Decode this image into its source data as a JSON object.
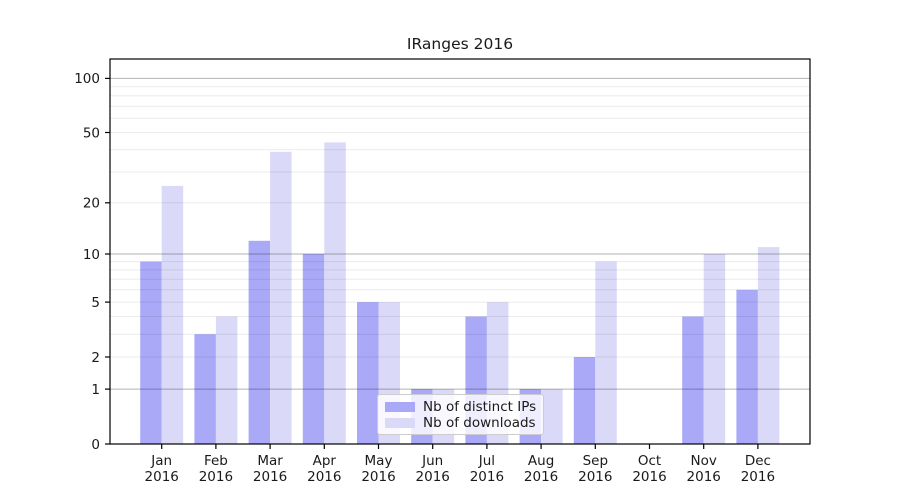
{
  "chart_data": {
    "type": "bar",
    "title": "IRanges 2016",
    "categories": [
      "Jan 2016",
      "Feb 2016",
      "Mar 2016",
      "Apr 2016",
      "May 2016",
      "Jun 2016",
      "Jul 2016",
      "Aug 2016",
      "Sep 2016",
      "Oct 2016",
      "Nov 2016",
      "Dec 2016"
    ],
    "series": [
      {
        "name": "Nb of distinct IPs",
        "color": "#a9a9f7",
        "values": [
          9,
          3,
          12,
          10,
          5,
          1,
          4,
          1,
          2,
          0,
          4,
          6
        ]
      },
      {
        "name": "Nb of downloads",
        "color": "#dadaf8",
        "values": [
          25,
          4,
          39,
          44,
          5,
          1,
          5,
          1,
          9,
          0,
          10,
          11
        ]
      }
    ],
    "xlabel": "",
    "ylabel": "",
    "yscale": "log1p",
    "ylim": [
      0,
      128
    ],
    "y_ticks": [
      0,
      1,
      2,
      5,
      10,
      20,
      50,
      100
    ],
    "grid_major": [
      1,
      10,
      100
    ],
    "grid_minor": [
      2,
      3,
      4,
      5,
      6,
      7,
      8,
      9,
      20,
      30,
      40,
      50,
      60,
      70,
      80,
      90
    ],
    "grid": "horizontal, drawn over bars",
    "legend_position": "inside bottom-center"
  },
  "colors": {
    "spine": "#000000",
    "grid_major": "rgba(0,0,0,0.30)",
    "grid_minor": "rgba(0,0,0,0.08)",
    "legend_border": "#cccccc",
    "text": "#1a1a1a",
    "background": "#ffffff"
  }
}
